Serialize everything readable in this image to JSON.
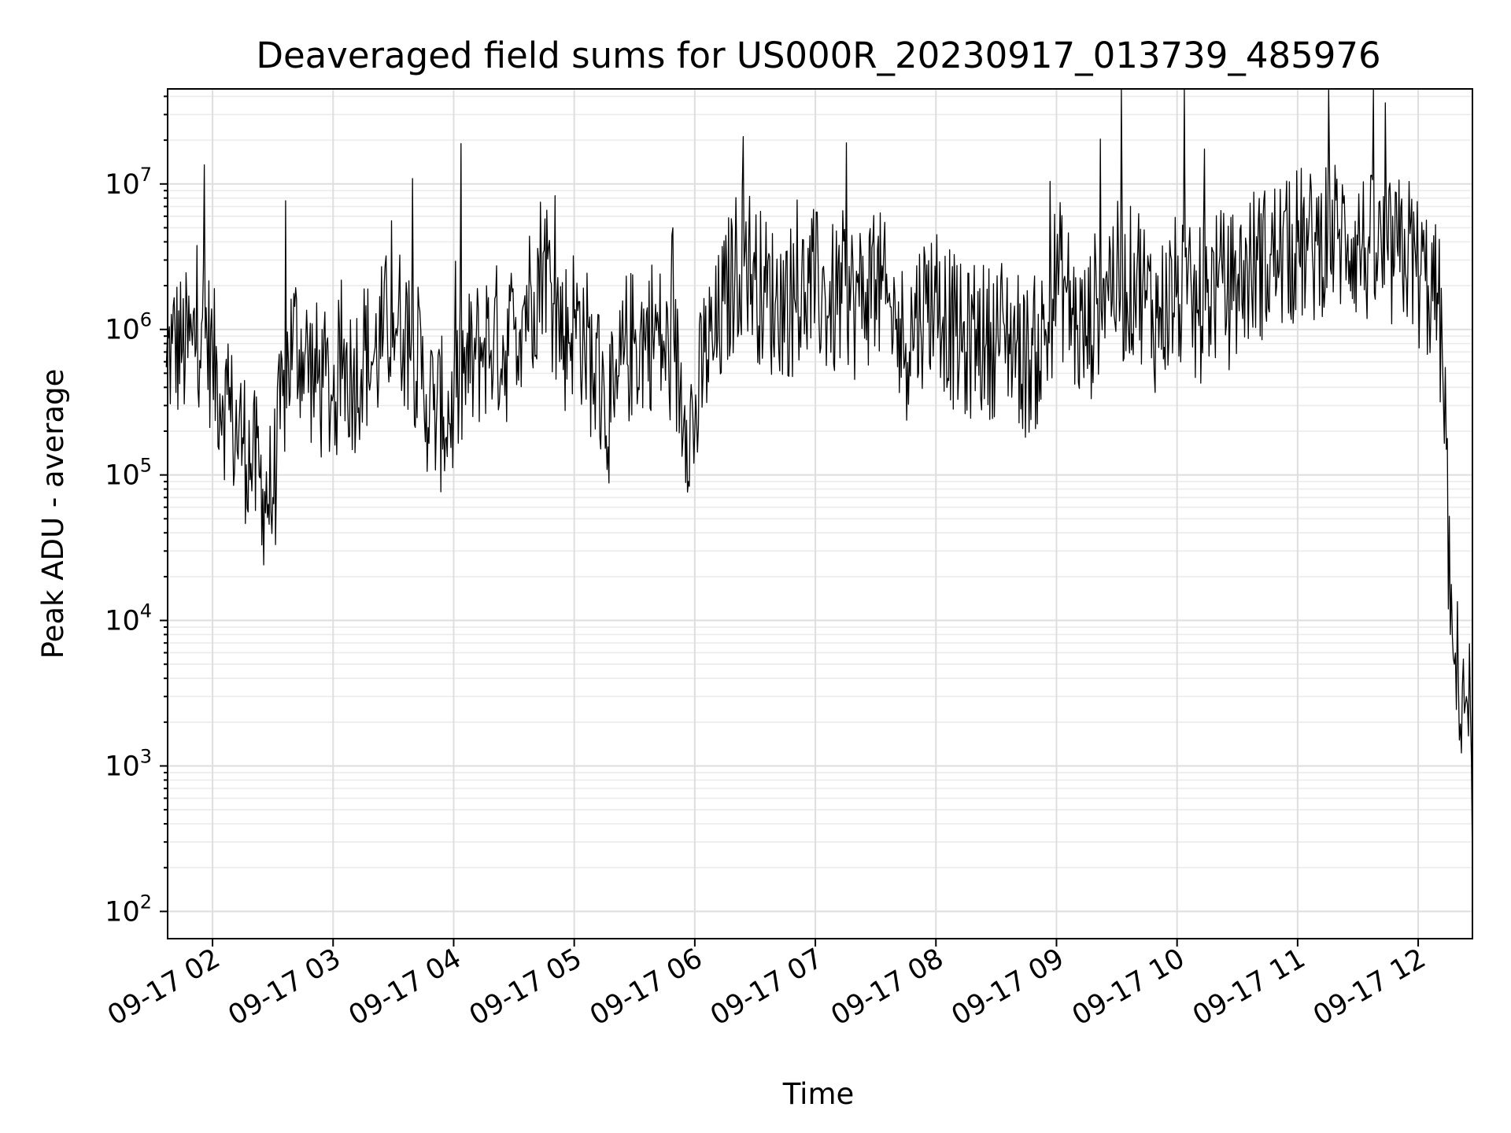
{
  "chart_data": {
    "type": "line",
    "title": "Deaveraged field sums for US000R_20230917_013739_485976",
    "xlabel": "Time",
    "ylabel": "Peak ADU - average",
    "xscale": "time",
    "yscale": "log",
    "xlim": [
      "2023-09-17 01:37:39",
      "2023-09-17 12:27:00"
    ],
    "ylim": [
      65,
      45000000
    ],
    "x_tick_labels": [
      "09-17 02",
      "09-17 03",
      "09-17 04",
      "09-17 05",
      "09-17 06",
      "09-17 07",
      "09-17 08",
      "09-17 09",
      "09-17 10",
      "09-17 11",
      "09-17 12"
    ],
    "y_tick_exponents": [
      "2",
      "3",
      "4",
      "5",
      "6",
      "7"
    ],
    "y_tick_base": "10",
    "grid": true,
    "legend": "none",
    "series": [
      {
        "color": "#000000",
        "x": [
          "01:37",
          "01:40",
          "01:45",
          "01:50",
          "01:55",
          "02:00",
          "02:05",
          "02:10",
          "02:15",
          "02:20",
          "02:25",
          "02:30",
          "02:35",
          "02:40",
          "02:45",
          "02:50",
          "02:55",
          "03:00",
          "03:05",
          "03:10",
          "03:15",
          "03:20",
          "03:25",
          "03:30",
          "03:35",
          "03:40",
          "03:45",
          "03:50",
          "03:55",
          "04:00",
          "04:05",
          "04:10",
          "04:15",
          "04:20",
          "04:25",
          "04:30",
          "04:35",
          "04:40",
          "04:45",
          "04:50",
          "04:55",
          "05:00",
          "05:05",
          "05:10",
          "05:15",
          "05:20",
          "05:25",
          "05:30",
          "05:35",
          "05:40",
          "05:45",
          "05:50",
          "05:55",
          "06:00",
          "06:05",
          "06:10",
          "06:15",
          "06:20",
          "06:25",
          "06:30",
          "06:35",
          "06:40",
          "06:45",
          "06:50",
          "06:55",
          "07:00",
          "07:05",
          "07:10",
          "07:15",
          "07:20",
          "07:25",
          "07:30",
          "07:35",
          "07:40",
          "07:45",
          "07:50",
          "07:55",
          "08:00",
          "08:05",
          "08:10",
          "08:15",
          "08:20",
          "08:25",
          "08:30",
          "08:35",
          "08:40",
          "08:45",
          "08:50",
          "08:55",
          "09:00",
          "09:05",
          "09:10",
          "09:15",
          "09:20",
          "09:25",
          "09:30",
          "09:35",
          "09:40",
          "09:45",
          "09:50",
          "09:55",
          "10:00",
          "10:05",
          "10:10",
          "10:15",
          "10:20",
          "10:25",
          "10:30",
          "10:35",
          "10:40",
          "10:45",
          "10:50",
          "10:55",
          "11:00",
          "11:05",
          "11:10",
          "11:15",
          "11:20",
          "11:25",
          "11:30",
          "11:35",
          "11:40",
          "11:45",
          "11:50",
          "11:55",
          "12:00",
          "12:05",
          "12:10",
          "12:12",
          "12:14",
          "12:16",
          "12:18",
          "12:20",
          "12:22",
          "12:24",
          "12:26",
          "12:27"
        ],
        "values": [
          550000,
          800000,
          720000,
          780000,
          1200000,
          600000,
          350000,
          220000,
          180000,
          120000,
          80000,
          70000,
          350000,
          900000,
          700000,
          500000,
          400000,
          350000,
          600000,
          450000,
          700000,
          600000,
          900000,
          1300000,
          1000000,
          800000,
          400000,
          280000,
          250000,
          300000,
          500000,
          600000,
          800000,
          900000,
          700000,
          1000000,
          1500000,
          1800000,
          3500000,
          1500000,
          900000,
          1200000,
          900000,
          500000,
          350000,
          250000,
          700000,
          800000,
          900000,
          1000000,
          700000,
          600000,
          300000,
          200000,
          700000,
          800000,
          1500000,
          2500000,
          3500000,
          2200000,
          1800000,
          1500000,
          1700000,
          1500000,
          1800000,
          2000000,
          1600000,
          1500000,
          2000000,
          1500000,
          1800000,
          2200000,
          1500000,
          1000000,
          800000,
          1200000,
          1500000,
          1800000,
          1200000,
          900000,
          700000,
          1000000,
          800000,
          900000,
          1000000,
          800000,
          600000,
          700000,
          900000,
          2500000,
          1800000,
          1000000,
          900000,
          1500000,
          2500000,
          2200000,
          1800000,
          2500000,
          1600000,
          1200000,
          1500000,
          1800000,
          1500000,
          1300000,
          1800000,
          2000000,
          1800000,
          2000000,
          2500000,
          3000000,
          2800000,
          3500000,
          3000000,
          4000000,
          3500000,
          3800000,
          5000000,
          4200000,
          4500000,
          3800000,
          3500000,
          3200000,
          3000000,
          3200000,
          3500000,
          2500000,
          2000000,
          1500000,
          700000,
          150000,
          8000,
          5000,
          4000,
          3500,
          3000,
          2500,
          200
        ]
      }
    ]
  }
}
